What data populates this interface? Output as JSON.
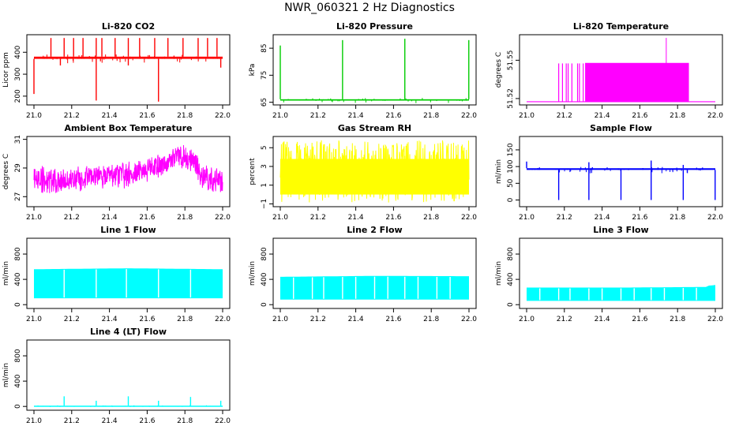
{
  "figure": {
    "title": "NWR_060321  2 Hz Diagnostics"
  },
  "chart_data": [
    {
      "type": "line",
      "title": "Li-820 CO2",
      "ylabel": "Licor ppm",
      "color": "#ff0000",
      "ylim": [
        160,
        480
      ],
      "yticks": [
        200,
        300,
        400
      ],
      "ytick_labels": [
        "200",
        "300",
        "400"
      ],
      "xlim": [
        21.0,
        22.0
      ],
      "xticks": [
        21.0,
        21.2,
        21.4,
        21.6,
        21.8,
        22.0
      ],
      "xtick_labels": [
        "21.0",
        "21.2",
        "21.4",
        "21.6",
        "21.8",
        "22.0"
      ],
      "baseline": [
        370,
        380
      ],
      "series_type": "spiky",
      "spikes_up": [
        [
          21.09,
          465
        ],
        [
          21.16,
          465
        ],
        [
          21.21,
          465
        ],
        [
          21.26,
          465
        ],
        [
          21.33,
          465
        ],
        [
          21.36,
          465
        ],
        [
          21.43,
          465
        ],
        [
          21.5,
          465
        ],
        [
          21.56,
          465
        ],
        [
          21.64,
          465
        ],
        [
          21.71,
          465
        ],
        [
          21.79,
          465
        ],
        [
          21.87,
          465
        ],
        [
          21.92,
          465
        ],
        [
          21.97,
          465
        ]
      ],
      "spikes_down": [
        [
          21.0,
          210
        ],
        [
          21.33,
          180
        ],
        [
          21.66,
          175
        ],
        [
          21.14,
          340
        ],
        [
          21.5,
          340
        ],
        [
          21.99,
          330
        ]
      ]
    },
    {
      "type": "line",
      "title": "Li-820 Pressure",
      "ylabel": "kPa",
      "color": "#00cc00",
      "ylim": [
        64,
        90
      ],
      "yticks": [
        65,
        75,
        85
      ],
      "ytick_labels": [
        "65",
        "75",
        "85"
      ],
      "xlim": [
        21.0,
        22.0
      ],
      "xticks": [
        21.0,
        21.2,
        21.4,
        21.6,
        21.8,
        22.0
      ],
      "xtick_labels": [
        "21.0",
        "21.2",
        "21.4",
        "21.6",
        "21.8",
        "22.0"
      ],
      "baseline": [
        65.6,
        66.1
      ],
      "series_type": "spiky",
      "spikes_up": [
        [
          21.0,
          86
        ],
        [
          21.33,
          88
        ],
        [
          21.66,
          88.5
        ],
        [
          21.999,
          88
        ]
      ],
      "spikes_down": []
    },
    {
      "type": "line",
      "title": "Li-820 Temperature",
      "ylabel": "degrees C",
      "color": "#ff00ff",
      "ylim": [
        51.515,
        51.57
      ],
      "yticks": [
        51.52,
        51.55
      ],
      "ytick_labels": [
        "51.52",
        "51.55"
      ],
      "xlim": [
        21.0,
        22.0
      ],
      "xticks": [
        21.0,
        21.2,
        21.4,
        21.6,
        21.8,
        22.0
      ],
      "xtick_labels": [
        "21.0",
        "21.2",
        "21.4",
        "21.6",
        "21.8",
        "22.0"
      ],
      "series_type": "step",
      "low_value": 51.5175,
      "high_value": 51.5475,
      "high_block": [
        21.31,
        21.86
      ],
      "thin_pulses": [
        21.17,
        21.19,
        21.21,
        21.22,
        21.24,
        21.27,
        21.28,
        21.3
      ],
      "spikes_up": [
        [
          21.74,
          51.5675
        ]
      ]
    },
    {
      "type": "line",
      "title": "Ambient Box Temperature",
      "ylabel": "degrees C",
      "color": "#ff00ff",
      "ylim": [
        26.3,
        31.2
      ],
      "yticks": [
        27,
        29,
        31
      ],
      "ytick_labels": [
        "27",
        "29",
        "31"
      ],
      "xlim": [
        21.0,
        22.0
      ],
      "xticks": [
        21.0,
        21.2,
        21.4,
        21.6,
        21.8,
        22.0
      ],
      "xtick_labels": [
        "21.0",
        "21.2",
        "21.4",
        "21.6",
        "21.8",
        "22.0"
      ],
      "series_type": "band",
      "center": [
        [
          21.0,
          28.3
        ],
        [
          21.1,
          28.1
        ],
        [
          21.2,
          28.2
        ],
        [
          21.3,
          28.4
        ],
        [
          21.4,
          28.4
        ],
        [
          21.5,
          28.6
        ],
        [
          21.6,
          28.8
        ],
        [
          21.7,
          29.3
        ],
        [
          21.8,
          29.9
        ],
        [
          21.85,
          29.4
        ],
        [
          21.9,
          28.3
        ],
        [
          22.0,
          28.0
        ]
      ],
      "halfwidth": 0.9
    },
    {
      "type": "line",
      "title": "Gas Stream RH",
      "ylabel": "percent",
      "color": "#ffff00",
      "ylim": [
        -1.3,
        6.2
      ],
      "yticks": [
        -1,
        1,
        3,
        5
      ],
      "ytick_labels": [
        "−1",
        "1",
        "3",
        "5"
      ],
      "xlim": [
        21.0,
        22.0
      ],
      "xticks": [
        21.0,
        21.2,
        21.4,
        21.6,
        21.8,
        22.0
      ],
      "xtick_labels": [
        "21.0",
        "21.2",
        "21.4",
        "21.6",
        "21.8",
        "22.0"
      ],
      "series_type": "noise",
      "range": [
        -0.9,
        5.8
      ],
      "dense_range": [
        0.0,
        3.8
      ]
    },
    {
      "type": "line",
      "title": "Sample Flow",
      "ylabel": "ml/min",
      "color": "#0000ff",
      "ylim": [
        -20,
        190
      ],
      "yticks": [
        0,
        50,
        100,
        150
      ],
      "ytick_labels": [
        "0",
        "50",
        "100",
        "150"
      ],
      "xlim": [
        21.0,
        22.0
      ],
      "xticks": [
        21.0,
        21.2,
        21.4,
        21.6,
        21.8,
        22.0
      ],
      "xtick_labels": [
        "21.0",
        "21.2",
        "21.4",
        "21.6",
        "21.8",
        "22.0"
      ],
      "baseline": [
        90,
        95
      ],
      "series_type": "spiky",
      "spikes_up": [
        [
          21.0,
          115
        ],
        [
          21.33,
          113
        ],
        [
          21.66,
          118
        ],
        [
          21.83,
          105
        ]
      ],
      "spikes_down": [
        [
          21.17,
          0
        ],
        [
          21.33,
          0
        ],
        [
          21.5,
          0
        ],
        [
          21.66,
          0
        ],
        [
          21.83,
          0
        ],
        [
          21.999,
          0
        ]
      ]
    },
    {
      "type": "line",
      "title": "Line 1 Flow",
      "ylabel": "ml/min",
      "color": "#00ffff",
      "ylim": [
        -60,
        1050
      ],
      "yticks": [
        0,
        400,
        800
      ],
      "ytick_labels": [
        "0",
        "400",
        "800"
      ],
      "xlim": [
        21.0,
        22.0
      ],
      "xticks": [
        21.0,
        21.2,
        21.4,
        21.6,
        21.8,
        22.0
      ],
      "xtick_labels": [
        "21.0",
        "21.2",
        "21.4",
        "21.6",
        "21.8",
        "22.0"
      ],
      "series_type": "block",
      "block": [
        [
          21.0,
          22.0
        ],
        100,
        [
          [
            21.0,
            560
          ],
          [
            21.5,
            575
          ],
          [
            22.0,
            560
          ]
        ]
      ],
      "gaps": [
        21.16,
        21.33,
        21.49,
        21.66,
        21.83
      ]
    },
    {
      "type": "line",
      "title": "Line 2 Flow",
      "ylabel": "ml/min",
      "color": "#00ffff",
      "ylim": [
        -60,
        1050
      ],
      "yticks": [
        0,
        400,
        800
      ],
      "ytick_labels": [
        "0",
        "400",
        "800"
      ],
      "xlim": [
        21.0,
        22.0
      ],
      "xticks": [
        21.0,
        21.2,
        21.4,
        21.6,
        21.8,
        22.0
      ],
      "xtick_labels": [
        "21.0",
        "21.2",
        "21.4",
        "21.6",
        "21.8",
        "22.0"
      ],
      "series_type": "block",
      "block": [
        [
          21.0,
          22.0
        ],
        80,
        [
          [
            21.0,
            440
          ],
          [
            21.5,
            455
          ],
          [
            22.0,
            450
          ]
        ]
      ],
      "gaps": [
        21.07,
        21.17,
        21.23,
        21.33,
        21.4,
        21.5,
        21.57,
        21.66,
        21.73,
        21.83,
        21.9
      ]
    },
    {
      "type": "line",
      "title": "Line 3 Flow",
      "ylabel": "ml/min",
      "color": "#00ffff",
      "ylim": [
        -60,
        1050
      ],
      "yticks": [
        0,
        400,
        800
      ],
      "ytick_labels": [
        "0",
        "400",
        "800"
      ],
      "xlim": [
        21.0,
        22.0
      ],
      "xticks": [
        21.0,
        21.2,
        21.4,
        21.6,
        21.8,
        22.0
      ],
      "xtick_labels": [
        "21.0",
        "21.2",
        "21.4",
        "21.6",
        "21.8",
        "22.0"
      ],
      "series_type": "block",
      "block": [
        [
          21.0,
          22.0
        ],
        60,
        [
          [
            21.0,
            270
          ],
          [
            21.5,
            270
          ],
          [
            21.95,
            280
          ],
          [
            21.96,
            300
          ],
          [
            22.0,
            310
          ]
        ]
      ],
      "gaps": [
        21.07,
        21.17,
        21.23,
        21.33,
        21.4,
        21.5,
        21.57,
        21.66,
        21.73,
        21.83,
        21.9
      ]
    },
    {
      "type": "line",
      "title": "Line 4 (LT) Flow",
      "ylabel": "ml/min",
      "color": "#00ffff",
      "ylim": [
        -60,
        1050
      ],
      "yticks": [
        0,
        400,
        800
      ],
      "ytick_labels": [
        "0",
        "400",
        "800"
      ],
      "xlim": [
        21.0,
        22.0
      ],
      "xticks": [
        21.0,
        21.2,
        21.4,
        21.6,
        21.8,
        22.0
      ],
      "xtick_labels": [
        "21.0",
        "21.2",
        "21.4",
        "21.6",
        "21.8",
        "22.0"
      ],
      "baseline": [
        5,
        12
      ],
      "series_type": "spiky",
      "spikes_up": [
        [
          21.16,
          160
        ],
        [
          21.33,
          90
        ],
        [
          21.5,
          160
        ],
        [
          21.66,
          90
        ],
        [
          21.83,
          150
        ],
        [
          21.99,
          90
        ]
      ],
      "spikes_down": []
    }
  ]
}
